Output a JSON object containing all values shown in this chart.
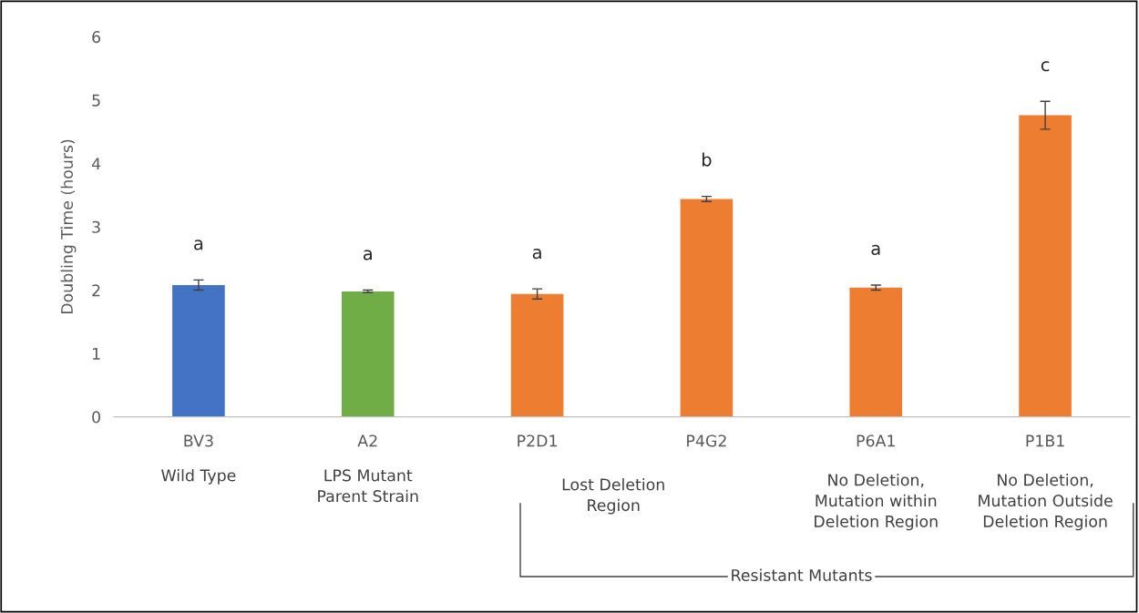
{
  "chart_data": {
    "type": "bar",
    "ylabel": "Doubling Time (hours)",
    "categories": [
      "BV3",
      "A2",
      "P2D1",
      "P4G2",
      "P6A1",
      "P1B1"
    ],
    "values": [
      2.08,
      1.98,
      1.94,
      3.44,
      2.04,
      4.76
    ],
    "colors": [
      "#4472c4",
      "#70ad47",
      "#ed7d31",
      "#ed7d31",
      "#ed7d31",
      "#ed7d31"
    ],
    "errors": [
      0.08,
      0.02,
      0.08,
      0.04,
      0.04,
      0.22
    ],
    "ylim": [
      0,
      6
    ],
    "yticks": [
      0,
      1,
      2,
      3,
      4,
      5,
      6
    ],
    "grid": false,
    "annotations": [
      "a",
      "a",
      "a",
      "b",
      "a",
      "c",
      "Wild Type",
      "LPS Mutant\nParent Strain",
      "Lost Deletion\nRegion",
      "No Deletion,\nMutation within\nDeletion Region",
      "No Deletion,\nMutation Outside\nDeletion Region",
      "Resistant Mutants"
    ]
  }
}
